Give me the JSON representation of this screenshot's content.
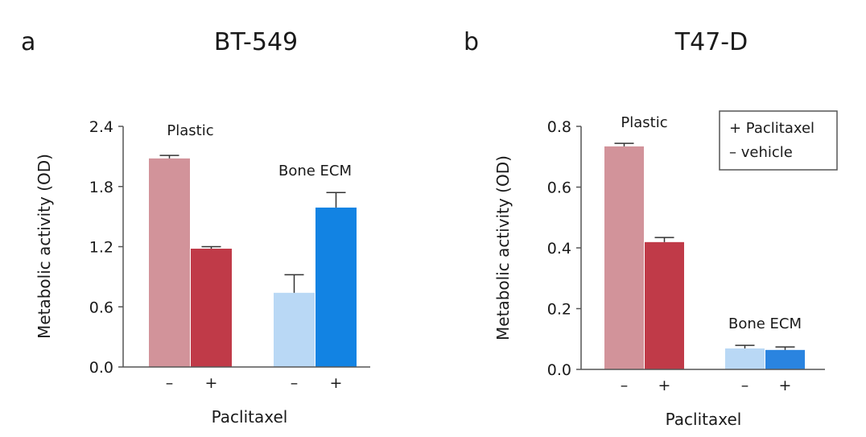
{
  "chart_data": [
    {
      "type": "bar",
      "panel_label": "a",
      "title": "BT-549",
      "xlabel": "Paclitaxel",
      "ylabel": "Metabolic activity (OD)",
      "ylim": [
        0,
        2.4
      ],
      "yticks": [
        "0.0",
        "0.6",
        "1.2",
        "1.8",
        "2.4"
      ],
      "grid": false,
      "groups": [
        {
          "name": "Plastic",
          "bars": [
            {
              "label": "–",
              "value": 2.08,
              "error": 0.03,
              "color": "#d2939a"
            },
            {
              "label": "+",
              "value": 1.18,
              "error": 0.02,
              "color": "#c03a48"
            }
          ]
        },
        {
          "name": "Bone ECM",
          "bars": [
            {
              "label": "–",
              "value": 0.74,
              "error": 0.18,
              "color": "#b9d8f5"
            },
            {
              "label": "+",
              "value": 1.59,
              "error": 0.15,
              "color": "#1283e3"
            }
          ]
        }
      ]
    },
    {
      "type": "bar",
      "panel_label": "b",
      "title": "T47-D",
      "xlabel": "Paclitaxel",
      "ylabel": "Metabolic activity (OD)",
      "ylim": [
        0,
        0.8
      ],
      "yticks": [
        "0.0",
        "0.2",
        "0.4",
        "0.6",
        "0.8"
      ],
      "grid": false,
      "legend": {
        "position": "top-right",
        "entries": [
          "+ Paclitaxel",
          "– vehicle"
        ]
      },
      "groups": [
        {
          "name": "Plastic",
          "bars": [
            {
              "label": "–",
              "value": 0.734,
              "error": 0.01,
              "color": "#d2939a"
            },
            {
              "label": "+",
              "value": 0.419,
              "error": 0.015,
              "color": "#c03a48"
            }
          ]
        },
        {
          "name": "Bone ECM",
          "bars": [
            {
              "label": "–",
              "value": 0.069,
              "error": 0.01,
              "color": "#b9d8f5"
            },
            {
              "label": "+",
              "value": 0.064,
              "error": 0.01,
              "color": "#2a84e0"
            }
          ]
        }
      ]
    }
  ]
}
